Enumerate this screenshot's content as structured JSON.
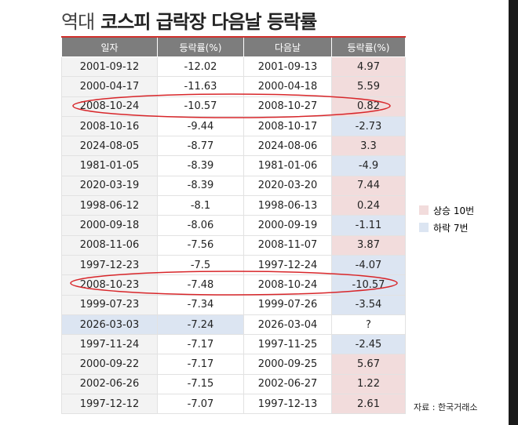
{
  "title": {
    "light": "역대",
    "bold": "코스피 급락장 다음날 등락률"
  },
  "table": {
    "header": [
      "일자",
      "등락률(%)",
      "다음날",
      "등락률(%)"
    ],
    "rows": [
      [
        "2001-09-12",
        -12.02,
        "2001-09-13",
        4.97
      ],
      [
        "2000-04-17",
        -11.63,
        "2000-04-18",
        5.59
      ],
      [
        "2008-10-24",
        -10.57,
        "2008-10-27",
        0.82
      ],
      [
        "2008-10-16",
        -9.44,
        "2008-10-17",
        -2.73
      ],
      [
        "2024-08-05",
        -8.77,
        "2024-08-06",
        3.3
      ],
      [
        "1981-01-05",
        -8.39,
        "1981-01-06",
        -4.9
      ],
      [
        "2020-03-19",
        -8.39,
        "2020-03-20",
        7.44
      ],
      [
        "1998-06-12",
        -8.1,
        "1998-06-13",
        0.24
      ],
      [
        "2000-09-18",
        -8.06,
        "2000-09-19",
        -1.11
      ],
      [
        "2008-11-06",
        -7.56,
        "2008-11-07",
        3.87
      ],
      [
        "1997-12-23",
        -7.5,
        "1997-12-24",
        -4.07
      ],
      [
        "2008-10-23",
        -7.48,
        "2008-10-24",
        -10.57
      ],
      [
        "1999-07-23",
        -7.34,
        "1999-07-26",
        -3.54
      ],
      [
        "2026-03-03",
        -7.24,
        "2026-03-04",
        "?"
      ],
      [
        "1997-11-24",
        -7.17,
        "1997-11-25",
        -2.45
      ],
      [
        "2000-09-22",
        -7.17,
        "2000-09-25",
        5.67
      ],
      [
        "2002-06-26",
        -7.15,
        "2002-06-27",
        1.22
      ],
      [
        "1997-12-12",
        -7.07,
        "1997-12-13",
        2.61
      ]
    ]
  },
  "legend": [
    {
      "label": "상승 10번",
      "color": "#f2dcdc"
    },
    {
      "label": "하락 7번",
      "color": "#dce5f2"
    }
  ],
  "source": "자료 : 한국거래소"
}
